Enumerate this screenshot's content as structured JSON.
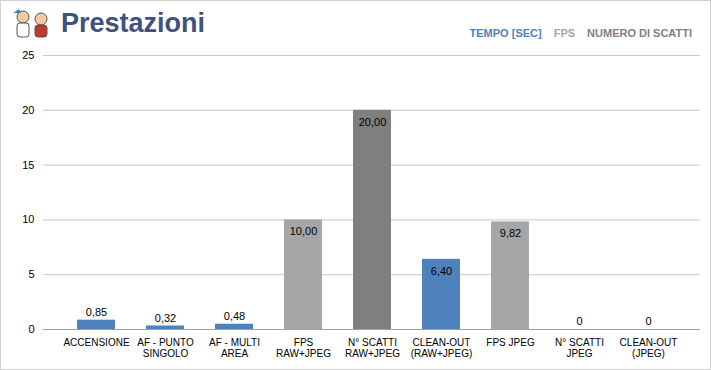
{
  "chart_data": {
    "type": "bar",
    "title": "Prestazioni",
    "categories": [
      "ACCENSIONE",
      "AF - PUNTO SINGOLO",
      "AF - MULTI AREA",
      "FPS RAW+JPEG",
      "N° SCATTI RAW+JPEG",
      "CLEAN-OUT (RAW+JPEG)",
      "FPS JPEG",
      "N° SCATTI JPEG",
      "CLEAN-OUT (JPEG)"
    ],
    "series": [
      {
        "name": "TEMPO [SEC]",
        "color": "#4f81bd",
        "values": [
          0.85,
          0.32,
          0.48,
          null,
          null,
          6.4,
          null,
          null,
          0
        ],
        "value_labels": [
          "0,85",
          "0,32",
          "0,48",
          null,
          null,
          "6,40",
          null,
          null,
          "0"
        ]
      },
      {
        "name": "FPS",
        "color": "#a6a6a6",
        "values": [
          null,
          null,
          null,
          10.0,
          null,
          null,
          9.82,
          null,
          null
        ],
        "value_labels": [
          null,
          null,
          null,
          "10,00",
          null,
          null,
          "9,82",
          null,
          null
        ]
      },
      {
        "name": "NUMERO DI SCATTI",
        "color": "#7f7f7f",
        "values": [
          null,
          null,
          null,
          null,
          20.0,
          null,
          null,
          0,
          null
        ],
        "value_labels": [
          null,
          null,
          null,
          null,
          "20,00",
          null,
          null,
          "0",
          null
        ]
      }
    ],
    "ylim": [
      0,
      25
    ],
    "yticks": [
      0,
      5,
      10,
      15,
      20,
      25
    ],
    "grid": true,
    "legend": "top-right",
    "data_labels": true
  }
}
